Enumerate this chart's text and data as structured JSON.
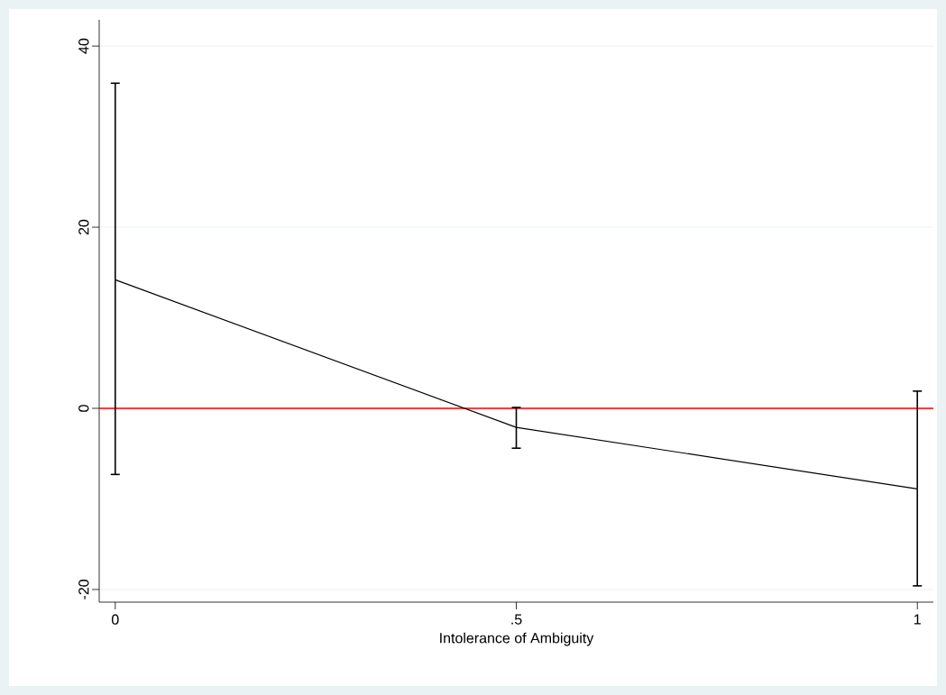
{
  "chart_data": {
    "type": "line",
    "xlabel": "Intolerance of Ambiguity",
    "x": [
      0,
      0.5,
      1
    ],
    "series": [
      {
        "color": "#000000",
        "values": [
          14.2,
          -2.1,
          -8.9
        ],
        "errors": [
          [
            -7.3,
            35.9
          ],
          [
            -4.4,
            0.1
          ],
          [
            -19.6,
            1.9
          ]
        ]
      }
    ],
    "xlim": [
      -0.02,
      1.02
    ],
    "ylim": [
      -21.4,
      42.9
    ],
    "xticks": [
      0,
      {
        "value": 0.5,
        "label": ".5"
      },
      1
    ],
    "yticks": [
      -20,
      0,
      20,
      40
    ],
    "grid": "y",
    "ref_lines": [
      {
        "axis": "y",
        "value": 0,
        "color": "#ff0000"
      }
    ]
  }
}
